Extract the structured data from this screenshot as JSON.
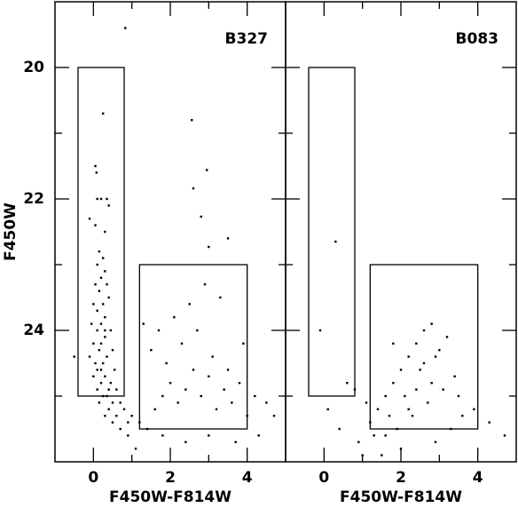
{
  "chart_data": [
    {
      "type": "scatter",
      "label": "B327",
      "xlabel": "F450W-F814W",
      "ylabel": "F450W",
      "xlim": [
        -1,
        5
      ],
      "ylim": [
        26,
        19
      ],
      "xticks": [
        0,
        2,
        4
      ],
      "xminor": [
        1,
        3
      ],
      "yticks": [
        20,
        22,
        24
      ],
      "yminor": [
        21,
        23,
        25
      ],
      "ytick_labels": true,
      "color": "#000000",
      "boxes": [
        {
          "x": [
            -0.4,
            0.8
          ],
          "y": [
            20,
            25
          ]
        },
        {
          "x": [
            1.2,
            4.0
          ],
          "y": [
            23,
            25.5
          ]
        }
      ],
      "x": [
        0.83,
        0.25,
        2.56,
        2.95,
        2.6,
        2.8,
        3.0,
        3.5,
        0.05,
        0.08,
        0.1,
        0.2,
        0.35,
        0.4,
        -0.1,
        0.05,
        0.3,
        0.15,
        0.25,
        0.1,
        0.3,
        0.2,
        0.05,
        0.35,
        0.15,
        0.4,
        0.25,
        0.0,
        0.1,
        0.3,
        -0.05,
        0.2,
        0.45,
        0.1,
        0.3,
        0.0,
        0.2,
        0.5,
        0.15,
        -0.1,
        0.35,
        0.05,
        0.25,
        0.55,
        0.1,
        0.3,
        0.0,
        0.45,
        0.2,
        0.6,
        0.1,
        0.35,
        0.25,
        0.7,
        0.5,
        0.15,
        0.4,
        0.8,
        0.6,
        0.3,
        1.0,
        0.9,
        0.5,
        1.2,
        1.4,
        0.7,
        -0.5,
        1.6,
        1.8,
        2.0,
        2.2,
        2.4,
        2.6,
        2.8,
        3.0,
        3.2,
        3.4,
        3.6,
        3.8,
        4.0,
        4.2,
        4.5,
        1.5,
        1.9,
        2.3,
        2.7,
        3.1,
        3.5,
        1.7,
        2.1,
        2.5,
        3.3,
        1.3,
        1.8,
        2.4,
        3.0,
        3.7,
        4.3,
        1.1,
        0.9,
        4.7,
        3.9,
        2.9,
        0.3,
        0.2,
        0.4
      ],
      "y": [
        19.4,
        20.7,
        20.8,
        21.56,
        21.84,
        22.27,
        22.73,
        22.6,
        21.5,
        21.6,
        22.0,
        22.0,
        22.0,
        22.1,
        22.3,
        22.4,
        22.5,
        22.8,
        22.9,
        23.0,
        23.1,
        23.2,
        23.3,
        23.3,
        23.4,
        23.5,
        23.6,
        23.6,
        23.7,
        23.8,
        23.9,
        23.9,
        24.0,
        24.0,
        24.1,
        24.2,
        24.2,
        24.3,
        24.3,
        24.4,
        24.4,
        24.5,
        24.5,
        24.6,
        24.6,
        24.7,
        24.7,
        24.8,
        24.8,
        24.9,
        24.9,
        25.0,
        25.0,
        25.1,
        25.1,
        25.1,
        25.2,
        25.2,
        25.3,
        25.3,
        25.3,
        25.4,
        25.4,
        25.4,
        25.5,
        25.5,
        24.4,
        25.2,
        25.0,
        24.8,
        25.1,
        24.9,
        24.6,
        25.0,
        24.7,
        25.2,
        24.9,
        25.1,
        24.8,
        25.3,
        25.0,
        25.1,
        24.3,
        24.5,
        24.2,
        24.0,
        24.4,
        24.6,
        24.0,
        23.8,
        23.6,
        23.5,
        23.9,
        25.6,
        25.7,
        25.6,
        25.7,
        25.6,
        25.8,
        25.6,
        25.3,
        24.2,
        23.3,
        24.0,
        24.6,
        24.9
      ]
    },
    {
      "type": "scatter",
      "label": "B083",
      "xlabel": "F450W-F814W",
      "xlim": [
        -1,
        5
      ],
      "ylim": [
        26,
        19
      ],
      "xticks": [
        0,
        2,
        4
      ],
      "xminor": [
        1,
        3
      ],
      "yticks": [
        20,
        22,
        24
      ],
      "yminor": [
        21,
        23,
        25
      ],
      "ytick_labels": false,
      "color": "#000000",
      "boxes": [
        {
          "x": [
            -0.4,
            0.8
          ],
          "y": [
            20,
            25
          ]
        },
        {
          "x": [
            1.2,
            4.0
          ],
          "y": [
            23,
            25.5
          ]
        }
      ],
      "x": [
        0.3,
        -0.1,
        0.6,
        0.8,
        0.1,
        0.4,
        0.9,
        1.2,
        1.4,
        1.6,
        1.8,
        2.0,
        2.2,
        2.4,
        2.6,
        2.8,
        3.0,
        2.5,
        2.1,
        1.7,
        1.3,
        1.9,
        2.3,
        2.7,
        3.1,
        3.5,
        3.9,
        4.3,
        4.7,
        3.3,
        2.9,
        2.0,
        1.5,
        1.0,
        2.6,
        2.8,
        3.2,
        1.6,
        2.2,
        3.6,
        1.1,
        2.4,
        2.9,
        1.8,
        3.4
      ],
      "y": [
        22.65,
        24.0,
        24.8,
        24.9,
        25.2,
        25.5,
        25.7,
        25.4,
        25.2,
        25.0,
        24.8,
        24.6,
        24.4,
        24.2,
        24.0,
        23.9,
        24.3,
        24.6,
        25.0,
        25.3,
        25.6,
        25.5,
        25.3,
        25.1,
        24.9,
        25.0,
        25.2,
        25.4,
        25.6,
        25.5,
        25.7,
        25.8,
        25.9,
        25.9,
        24.5,
        24.8,
        24.1,
        25.6,
        25.2,
        25.3,
        25.1,
        24.9,
        24.4,
        24.2,
        24.7
      ]
    }
  ]
}
